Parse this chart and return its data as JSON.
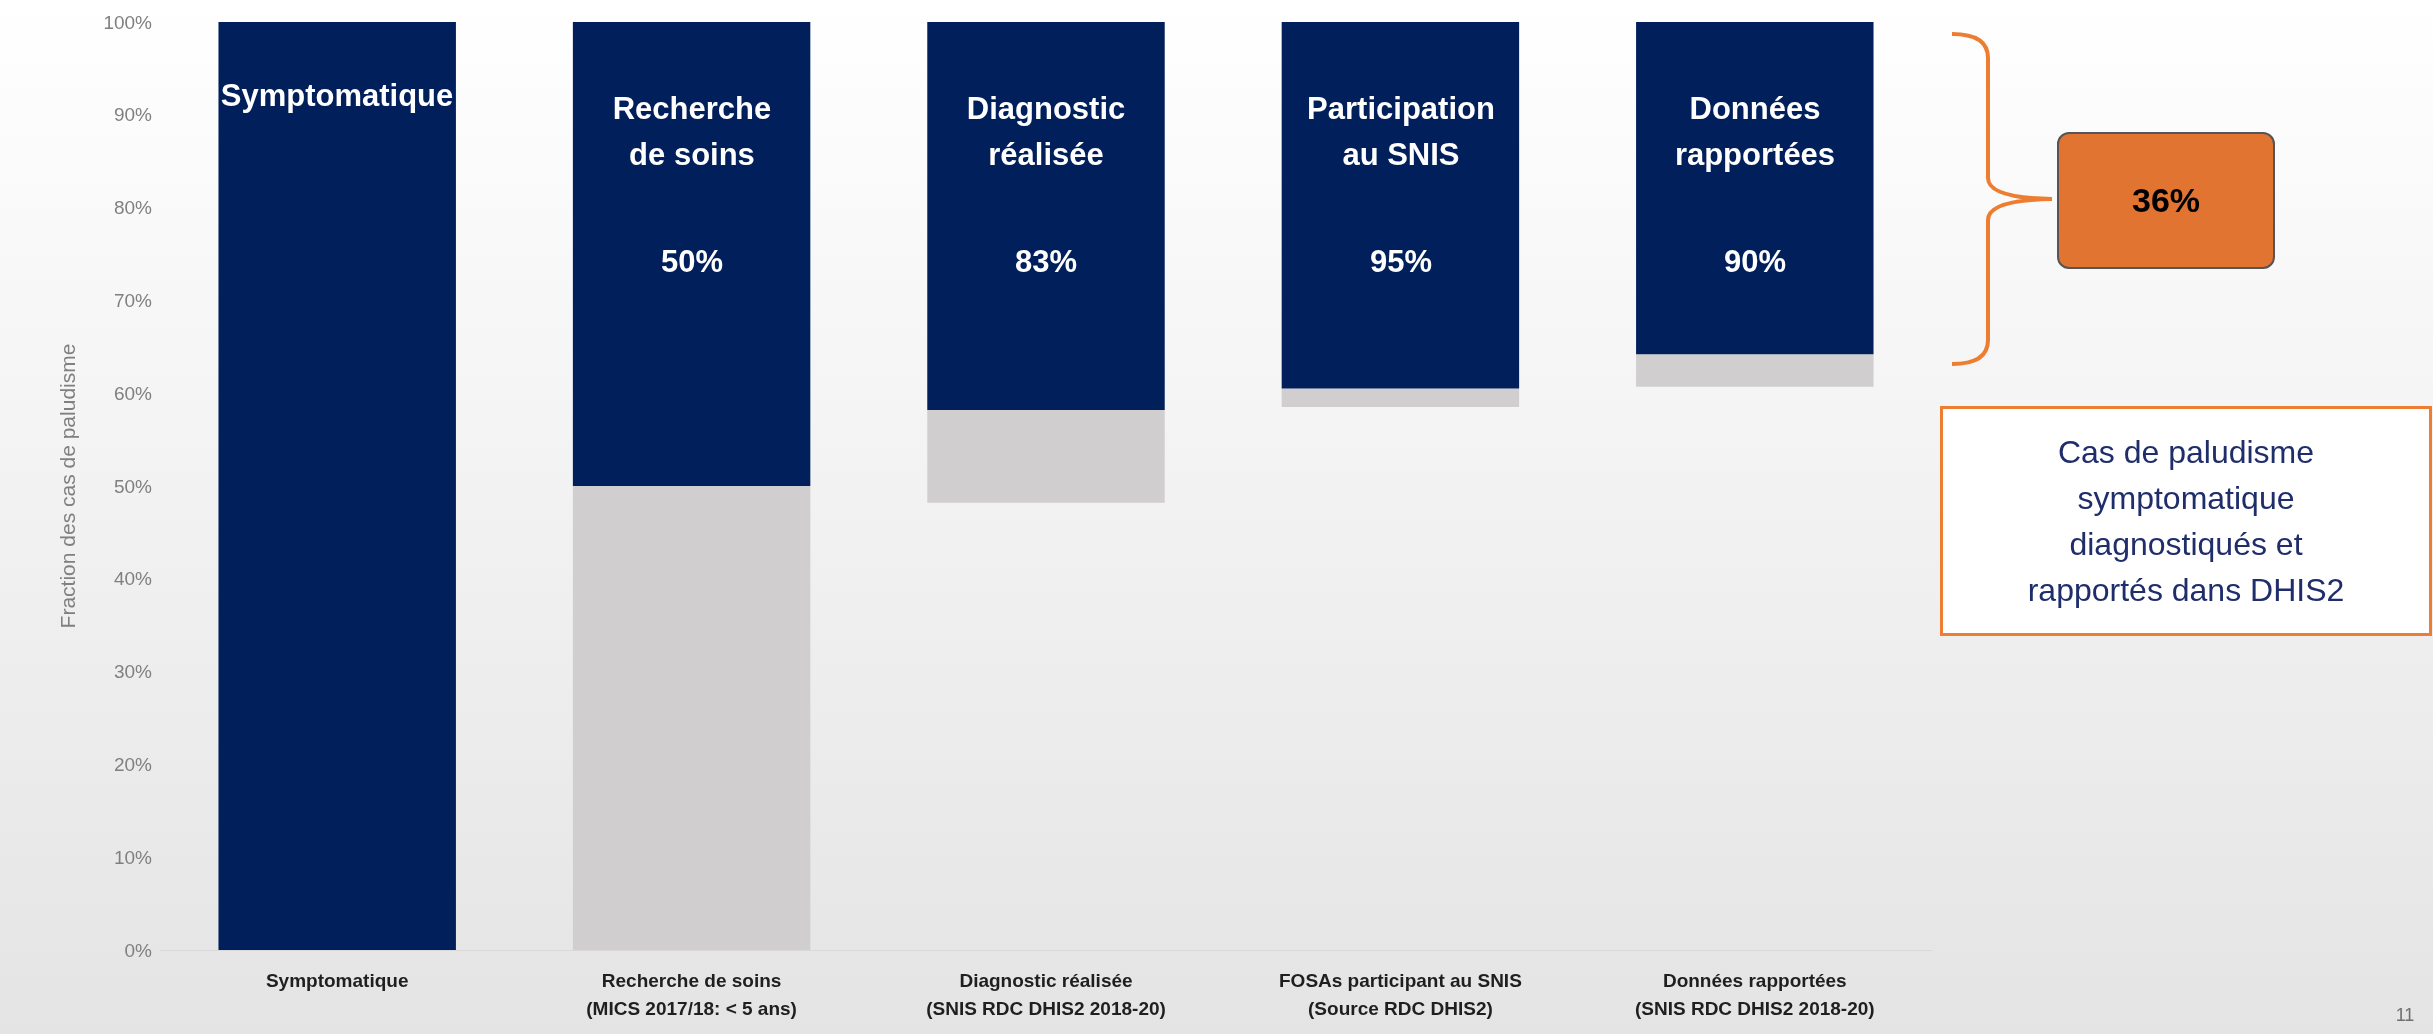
{
  "chart_data": {
    "type": "bar",
    "ylabel": "Fraction des cas de paludisme",
    "categories": [
      "Symptomatique",
      "Recherche de soins\n(MICS 2017/18: < 5 ans)",
      "Diagnostic réalisée\n(SNIS RDC DHIS2 2018-20)",
      "FOSAs participant au SNIS\n(Source RDC DHIS2)",
      "Données rapportées\n(SNIS RDC DHIS2 2018-20)"
    ],
    "series": [
      {
        "color": "#d0cece",
        "base": [
          null,
          0,
          48.2,
          58.5,
          60.7
        ],
        "values": [
          null,
          50,
          10,
          2,
          3.5
        ]
      },
      {
        "color": "#001f5b",
        "base": [
          0,
          50,
          58.2,
          60.5,
          64.2
        ],
        "values": [
          100,
          50,
          41.8,
          39.5,
          35.8
        ]
      }
    ],
    "ylim": [
      0,
      100
    ],
    "yticks": [
      {
        "value": 0,
        "label": "0%"
      },
      {
        "value": 10,
        "label": "10%"
      },
      {
        "value": 20,
        "label": "20%"
      },
      {
        "value": 30,
        "label": "30%"
      },
      {
        "value": 40,
        "label": "40%"
      },
      {
        "value": 50,
        "label": "50%"
      },
      {
        "value": 60,
        "label": "60%"
      },
      {
        "value": 70,
        "label": "70%"
      },
      {
        "value": 80,
        "label": "80%"
      },
      {
        "value": 90,
        "label": "90%"
      },
      {
        "value": 100,
        "label": "100%"
      }
    ],
    "grid": false,
    "annotations": [
      "Symptomatique",
      "Recherche\nde soins",
      "50%",
      "Diagnostic\nréalisée",
      "83%",
      "Participation\nau SNIS",
      "95%",
      "Données\nrapportées",
      "90%",
      "36%",
      "Cas de paludisme\nsymptomatique\ndiagnostiqués et\nrapportés dans DHIS2",
      "11"
    ]
  }
}
